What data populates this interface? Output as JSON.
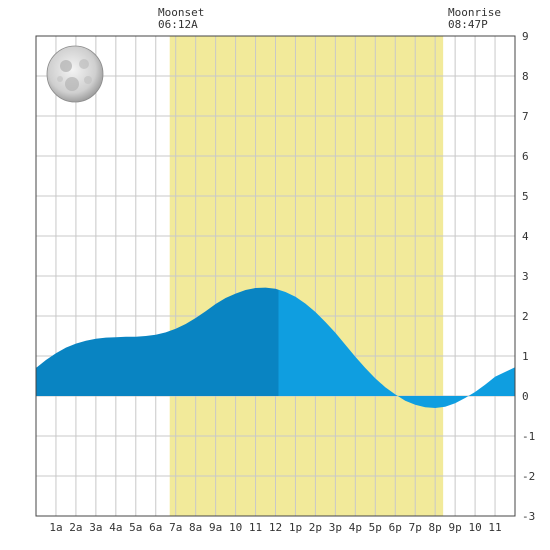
{
  "chart_data": {
    "type": "area",
    "title": "",
    "xlabel": "",
    "ylabel": "",
    "x_ticks": [
      "1a",
      "2a",
      "3a",
      "4a",
      "5a",
      "6a",
      "7a",
      "8a",
      "9a",
      "10",
      "11",
      "12",
      "1p",
      "2p",
      "3p",
      "4p",
      "5p",
      "6p",
      "7p",
      "8p",
      "9p",
      "10",
      "11"
    ],
    "xlim": [
      0,
      24
    ],
    "ylim": [
      -3,
      9
    ],
    "y_ticks": [
      -3,
      -2,
      -1,
      0,
      1,
      2,
      3,
      4,
      5,
      6,
      7,
      8,
      9
    ],
    "grid": true,
    "daylight_band": {
      "start_hour": 6.7,
      "end_hour": 20.4
    },
    "series": [
      {
        "x": [
          0,
          0.5,
          1,
          1.5,
          2,
          2.5,
          3,
          3.5,
          4,
          4.5,
          5,
          5.5,
          6,
          6.5,
          7,
          7.5,
          8,
          8.5,
          9,
          9.5,
          10,
          10.5,
          11,
          11.5,
          12,
          12.5,
          13,
          13.5,
          14,
          14.5,
          15,
          15.5,
          16,
          16.5,
          17,
          17.5,
          18,
          18.5,
          19,
          19.5,
          20,
          20.5,
          21,
          21.5,
          22,
          22.5,
          23,
          23.5,
          24
        ],
        "y": [
          0.7,
          0.9,
          1.07,
          1.21,
          1.31,
          1.38,
          1.43,
          1.46,
          1.47,
          1.48,
          1.48,
          1.5,
          1.53,
          1.59,
          1.68,
          1.8,
          1.95,
          2.12,
          2.3,
          2.45,
          2.56,
          2.65,
          2.7,
          2.71,
          2.68,
          2.6,
          2.48,
          2.31,
          2.1,
          1.85,
          1.58,
          1.28,
          0.98,
          0.7,
          0.44,
          0.22,
          0.04,
          -0.12,
          -0.22,
          -0.28,
          -0.3,
          -0.27,
          -0.18,
          -0.05,
          0.1,
          0.28,
          0.48,
          0.6,
          0.72
        ]
      }
    ],
    "now_hour": 12.15,
    "colors": {
      "band": "#f2ea9a",
      "past_fill": "#0984c2",
      "future_fill": "#0f9ee0",
      "grid": "#c8c8c8",
      "axis": "#444444"
    },
    "moonset": {
      "label": "Moonset",
      "time": "06:12A"
    },
    "moonrise": {
      "label": "Moonrise",
      "time": "08:47P"
    },
    "icon": "full-moon-icon"
  }
}
